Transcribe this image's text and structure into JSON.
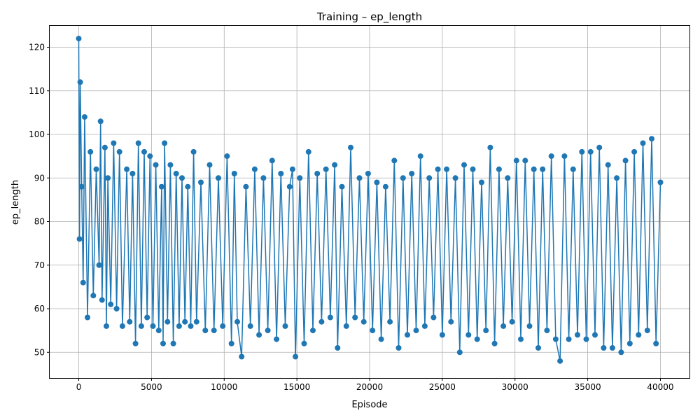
{
  "chart_data": {
    "type": "line",
    "title": "Training – ep_length",
    "xlabel": "Episode",
    "ylabel": "ep_length",
    "xlim": [
      -2000,
      42000
    ],
    "ylim": [
      44.1,
      124.9
    ],
    "x_ticks": [
      0,
      5000,
      10000,
      15000,
      20000,
      25000,
      30000,
      35000,
      40000
    ],
    "y_ticks": [
      50,
      60,
      70,
      80,
      90,
      100,
      110,
      120
    ],
    "grid": true,
    "marker": "circle",
    "color": "#1f77b4",
    "series": [
      {
        "x": [
          0,
          50,
          100,
          200,
          300,
          400,
          600,
          800,
          1000,
          1200,
          1400,
          1500,
          1600,
          1800,
          1900,
          2000,
          2200,
          2400,
          2600,
          2800,
          3000,
          3300,
          3500,
          3700,
          3900,
          4100,
          4300,
          4500,
          4700,
          4900,
          5100,
          5300,
          5500,
          5700,
          5800,
          5900,
          6100,
          6300,
          6500,
          6700,
          6900,
          7100,
          7300,
          7500,
          7700,
          7900,
          8100,
          8400,
          8700,
          9000,
          9300,
          9600,
          9900,
          10200,
          10500,
          10700,
          10900,
          11200,
          11500,
          11800,
          12100,
          12400,
          12700,
          13000,
          13300,
          13600,
          13900,
          14200,
          14500,
          14700,
          14900,
          15200,
          15500,
          15800,
          16100,
          16400,
          16700,
          17000,
          17300,
          17600,
          17800,
          18100,
          18400,
          18700,
          19000,
          19300,
          19600,
          19900,
          20200,
          20500,
          20800,
          21100,
          21400,
          21700,
          22000,
          22300,
          22600,
          22900,
          23200,
          23500,
          23800,
          24100,
          24400,
          24700,
          25000,
          25300,
          25600,
          25900,
          26200,
          26500,
          26800,
          27100,
          27400,
          27700,
          28000,
          28300,
          28600,
          28900,
          29200,
          29500,
          29800,
          30100,
          30400,
          30700,
          31000,
          31300,
          31600,
          31900,
          32200,
          32500,
          32800,
          33100,
          33400,
          33700,
          34000,
          34300,
          34600,
          34900,
          35200,
          35500,
          35800,
          36100,
          36400,
          36700,
          37000,
          37300,
          37600,
          37900,
          38200,
          38500,
          38800,
          39100,
          39400,
          39700,
          40000
        ],
        "y": [
          122,
          76,
          112,
          88,
          66,
          104,
          58,
          96,
          63,
          92,
          70,
          103,
          62,
          97,
          56,
          90,
          61,
          98,
          60,
          96,
          56,
          92,
          57,
          91,
          52,
          98,
          56,
          96,
          58,
          95,
          56,
          93,
          55,
          88,
          52,
          98,
          57,
          93,
          52,
          91,
          56,
          90,
          57,
          88,
          56,
          96,
          57,
          89,
          55,
          93,
          55,
          90,
          56,
          95,
          52,
          91,
          57,
          49,
          88,
          56,
          92,
          54,
          90,
          55,
          94,
          53,
          91,
          56,
          88,
          92,
          49,
          90,
          52,
          96,
          55,
          91,
          57,
          92,
          58,
          93,
          51,
          88,
          56,
          97,
          58,
          90,
          57,
          91,
          55,
          89,
          53,
          88,
          57,
          94,
          51,
          90,
          54,
          91,
          55,
          95,
          56,
          90,
          58,
          92,
          54,
          92,
          57,
          90,
          50,
          93,
          54,
          92,
          53,
          89,
          55,
          97,
          52,
          92,
          56,
          90,
          57,
          94,
          53,
          94,
          56,
          92,
          51,
          92,
          55,
          95,
          53,
          48,
          95,
          53,
          92,
          54,
          96,
          53,
          96,
          54,
          97,
          51,
          93,
          51,
          90,
          50,
          94,
          52,
          96,
          54,
          98,
          55,
          99,
          52,
          89
        ]
      }
    ]
  }
}
